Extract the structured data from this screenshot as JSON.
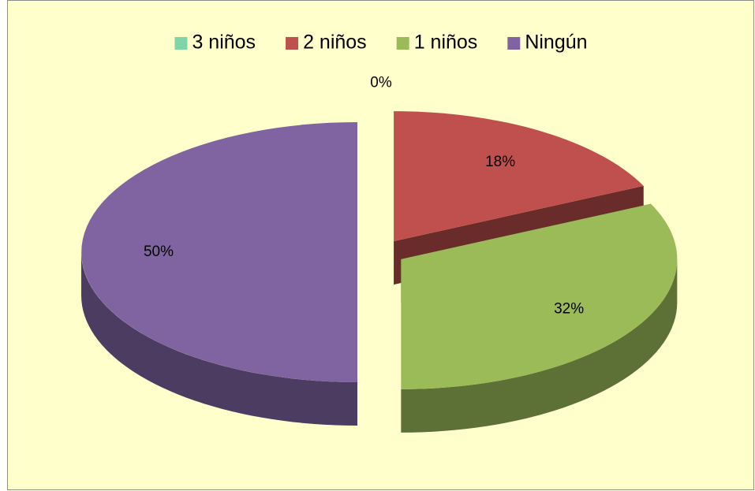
{
  "chart_data": {
    "type": "pie",
    "categories": [
      "3 niños",
      "2 niños",
      "1 niños",
      "Ningún"
    ],
    "values": [
      0,
      18,
      32,
      50
    ],
    "value_labels": [
      "0%",
      "18%",
      "32%",
      "50%"
    ],
    "colors": [
      "#7fd4a8",
      "#c0504d",
      "#9bbb59",
      "#8064a2"
    ],
    "legend": "top"
  }
}
